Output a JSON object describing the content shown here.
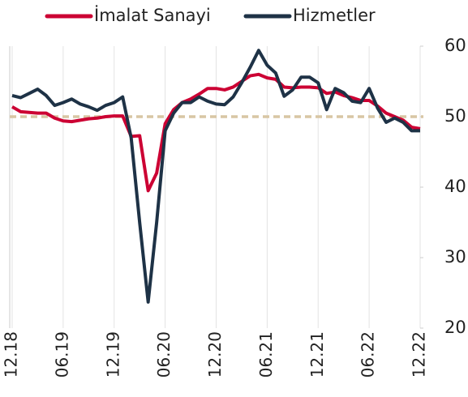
{
  "chart_data": {
    "type": "line",
    "categories": [
      "12.18",
      null,
      null,
      null,
      null,
      null,
      "06.19",
      null,
      null,
      null,
      null,
      null,
      "12.19",
      null,
      null,
      null,
      null,
      null,
      "06.20",
      null,
      null,
      null,
      null,
      null,
      "12.20",
      null,
      null,
      null,
      null,
      null,
      "06.21",
      null,
      null,
      null,
      null,
      null,
      "12.21",
      null,
      null,
      null,
      null,
      null,
      "06.22",
      null,
      null,
      null,
      null,
      null,
      "12.22"
    ],
    "series": [
      {
        "name": "İmalat Sanayi",
        "color": "#cc0033",
        "values": [
          51.4,
          50.7,
          50.6,
          50.5,
          50.5,
          49.8,
          49.4,
          49.3,
          49.5,
          49.7,
          49.8,
          50.0,
          50.1,
          50.1,
          47.2,
          47.3,
          39.5,
          42.0,
          49.0,
          51.0,
          52.0,
          52.5,
          53.2,
          54.0,
          54.0,
          53.8,
          54.2,
          55.0,
          55.8,
          56.0,
          55.5,
          55.3,
          54.2,
          54.1,
          54.2,
          54.2,
          54.1,
          53.3,
          53.5,
          53.0,
          52.7,
          52.3,
          52.3,
          51.5,
          50.5,
          50.0,
          49.5,
          48.5,
          48.3
        ]
      },
      {
        "name": "Hizmetler",
        "color": "#1e3246",
        "values": [
          53.0,
          52.7,
          53.3,
          53.9,
          53.0,
          51.6,
          52.0,
          52.5,
          51.8,
          51.4,
          50.9,
          51.6,
          52.0,
          52.8,
          47.0,
          35.0,
          23.7,
          35.0,
          48.0,
          50.5,
          52.0,
          52.0,
          52.8,
          52.2,
          51.8,
          51.7,
          52.8,
          54.8,
          57.0,
          59.4,
          57.3,
          56.2,
          52.9,
          53.8,
          55.6,
          55.6,
          54.8,
          51.0,
          54.0,
          53.4,
          52.2,
          52.0,
          54.0,
          51.2,
          49.2,
          49.8,
          49.2,
          48.0,
          48.0
        ]
      }
    ],
    "reference_line": 50,
    "ylim": [
      20,
      60
    ],
    "yticks": [
      20,
      30,
      40,
      50,
      60
    ],
    "y_axis_side": "right"
  }
}
